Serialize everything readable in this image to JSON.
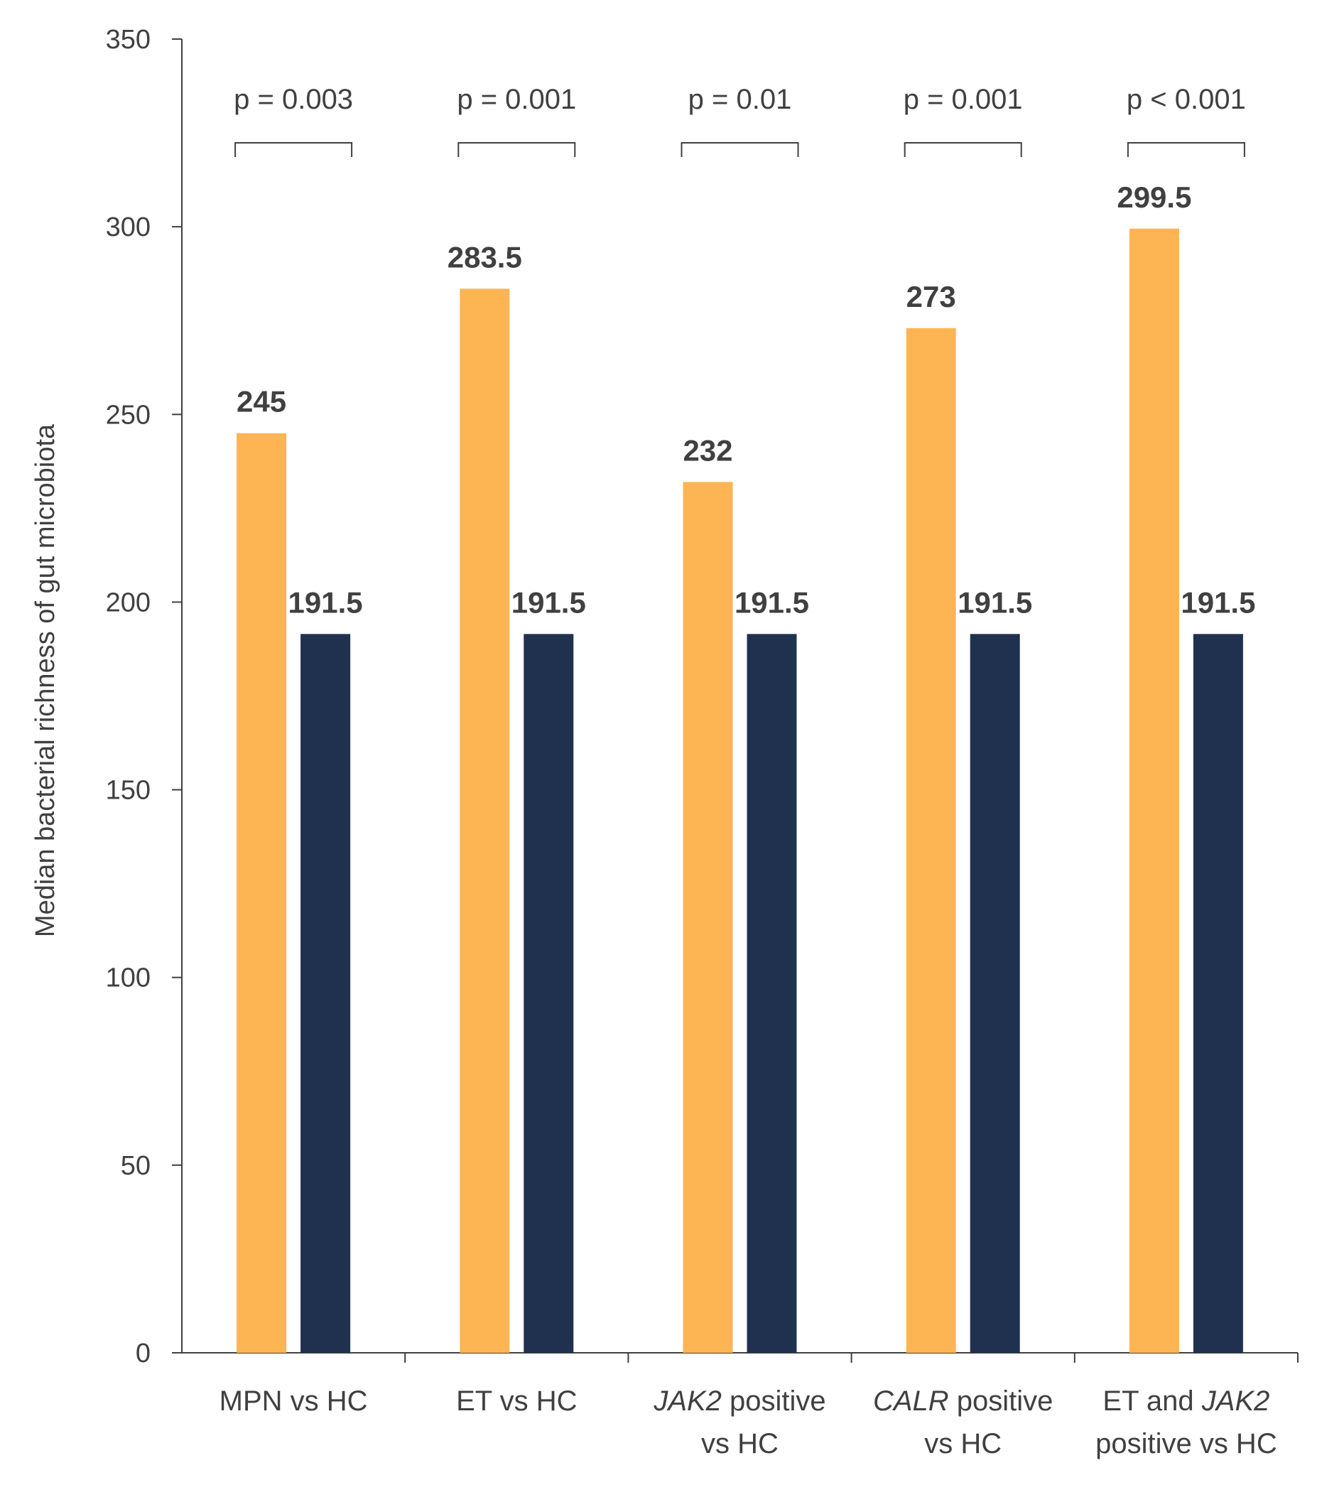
{
  "chart_data": {
    "type": "bar",
    "title": "",
    "xlabel": "",
    "ylabel": "Median bacterial richness of gut microbiota",
    "ylim": [
      0,
      350
    ],
    "yticks": [
      0,
      50,
      100,
      150,
      200,
      250,
      300,
      350
    ],
    "grid": false,
    "legend": "none",
    "categories": [
      {
        "lines": [
          [
            {
              "text": "MPN vs HC",
              "italic": false
            }
          ]
        ]
      },
      {
        "lines": [
          [
            {
              "text": "ET vs HC",
              "italic": false
            }
          ]
        ]
      },
      {
        "lines": [
          [
            {
              "text": "JAK2",
              "italic": true
            },
            {
              "text": " positive",
              "italic": false
            }
          ],
          [
            {
              "text": "vs HC",
              "italic": false
            }
          ]
        ]
      },
      {
        "lines": [
          [
            {
              "text": "CALR",
              "italic": true
            },
            {
              "text": " positive",
              "italic": false
            }
          ],
          [
            {
              "text": "vs HC",
              "italic": false
            }
          ]
        ]
      },
      {
        "lines": [
          [
            {
              "text": "ET and ",
              "italic": false
            },
            {
              "text": "JAK2",
              "italic": true
            }
          ],
          [
            {
              "text": "positive vs HC",
              "italic": false
            }
          ]
        ]
      }
    ],
    "series": [
      {
        "color": "#FDB553",
        "values": [
          245,
          283.5,
          232,
          273,
          299.5
        ],
        "labels": [
          "245",
          "283.5",
          "232",
          "273",
          "299.5"
        ]
      },
      {
        "color": "#203150",
        "values": [
          191.5,
          191.5,
          191.5,
          191.5,
          191.5
        ],
        "labels": [
          "191.5",
          "191.5",
          "191.5",
          "191.5",
          "191.5"
        ]
      }
    ],
    "p_values": [
      "p = 0.003",
      "p = 0.001",
      "p = 0.01",
      "p = 0.001",
      "p < 0.001"
    ]
  }
}
